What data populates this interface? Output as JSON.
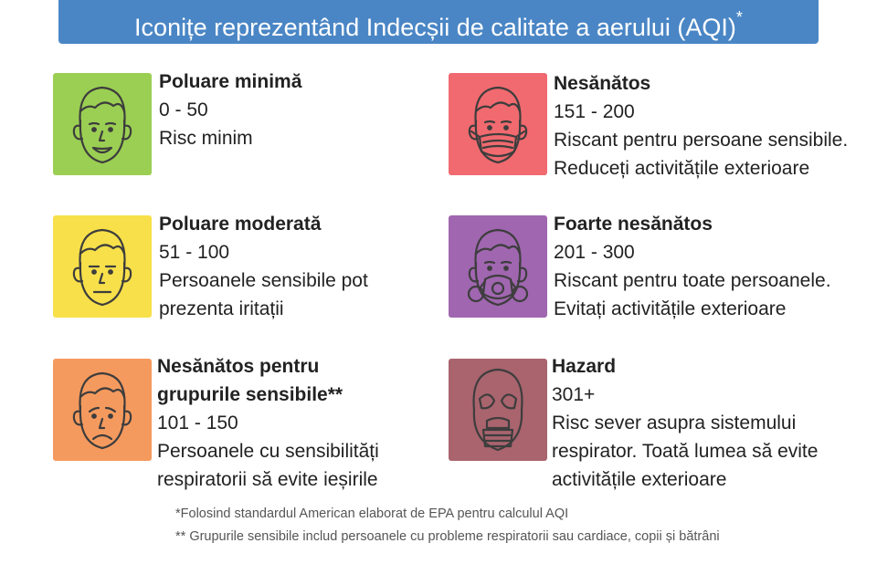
{
  "header": {
    "title": "Iconițe reprezentând Indecșii de calitate a aerului (AQI)",
    "title_mark": "*",
    "bg_color": "#4a86c5"
  },
  "categories": [
    {
      "title": "Poluare minimă",
      "range": "0 - 50",
      "desc_lines": [
        "Risc minim"
      ],
      "color": "#9bcf53",
      "icon": "smiling-face-icon"
    },
    {
      "title": "Nesănătos",
      "range": "151 - 200",
      "desc_lines": [
        "Riscant pentru persoane sensibile.",
        "Reduceți activitățile exterioare"
      ],
      "color": "#f16a6f",
      "icon": "face-with-surgical-mask-icon"
    },
    {
      "title": "Poluare moderată",
      "range": "51 - 100",
      "desc_lines": [
        "Persoanele sensibile pot",
        "prezenta iritații"
      ],
      "color": "#f7e04a",
      "icon": "neutral-face-icon"
    },
    {
      "title": "Foarte nesănătos",
      "range": "201 - 300",
      "desc_lines": [
        "Riscant pentru toate persoanele.",
        "Evitați activitățile exterioare"
      ],
      "color": "#a066b0",
      "icon": "face-with-respirator-icon"
    },
    {
      "title_lines": [
        "Nesănătos pentru",
        "grupurile sensibile**"
      ],
      "range": "101 - 150",
      "desc_lines": [
        "Persoanele cu sensibilități",
        "respiratorii să evite ieșirile"
      ],
      "color": "#f59a5e",
      "icon": "sad-face-icon"
    },
    {
      "title": "Hazard",
      "range": "301+",
      "desc_lines": [
        "Risc sever asupra sistemului",
        "respirator. Toată lumea să evite",
        "activitățile exterioare"
      ],
      "color": "#a9646e",
      "icon": "gas-mask-icon"
    }
  ],
  "footnotes": [
    "*Folosind standardul American elaborat de EPA pentru calculul AQI",
    "** Grupurile sensibile includ persoanele cu probleme respiratorii sau cardiace, copii și bătrâni"
  ]
}
